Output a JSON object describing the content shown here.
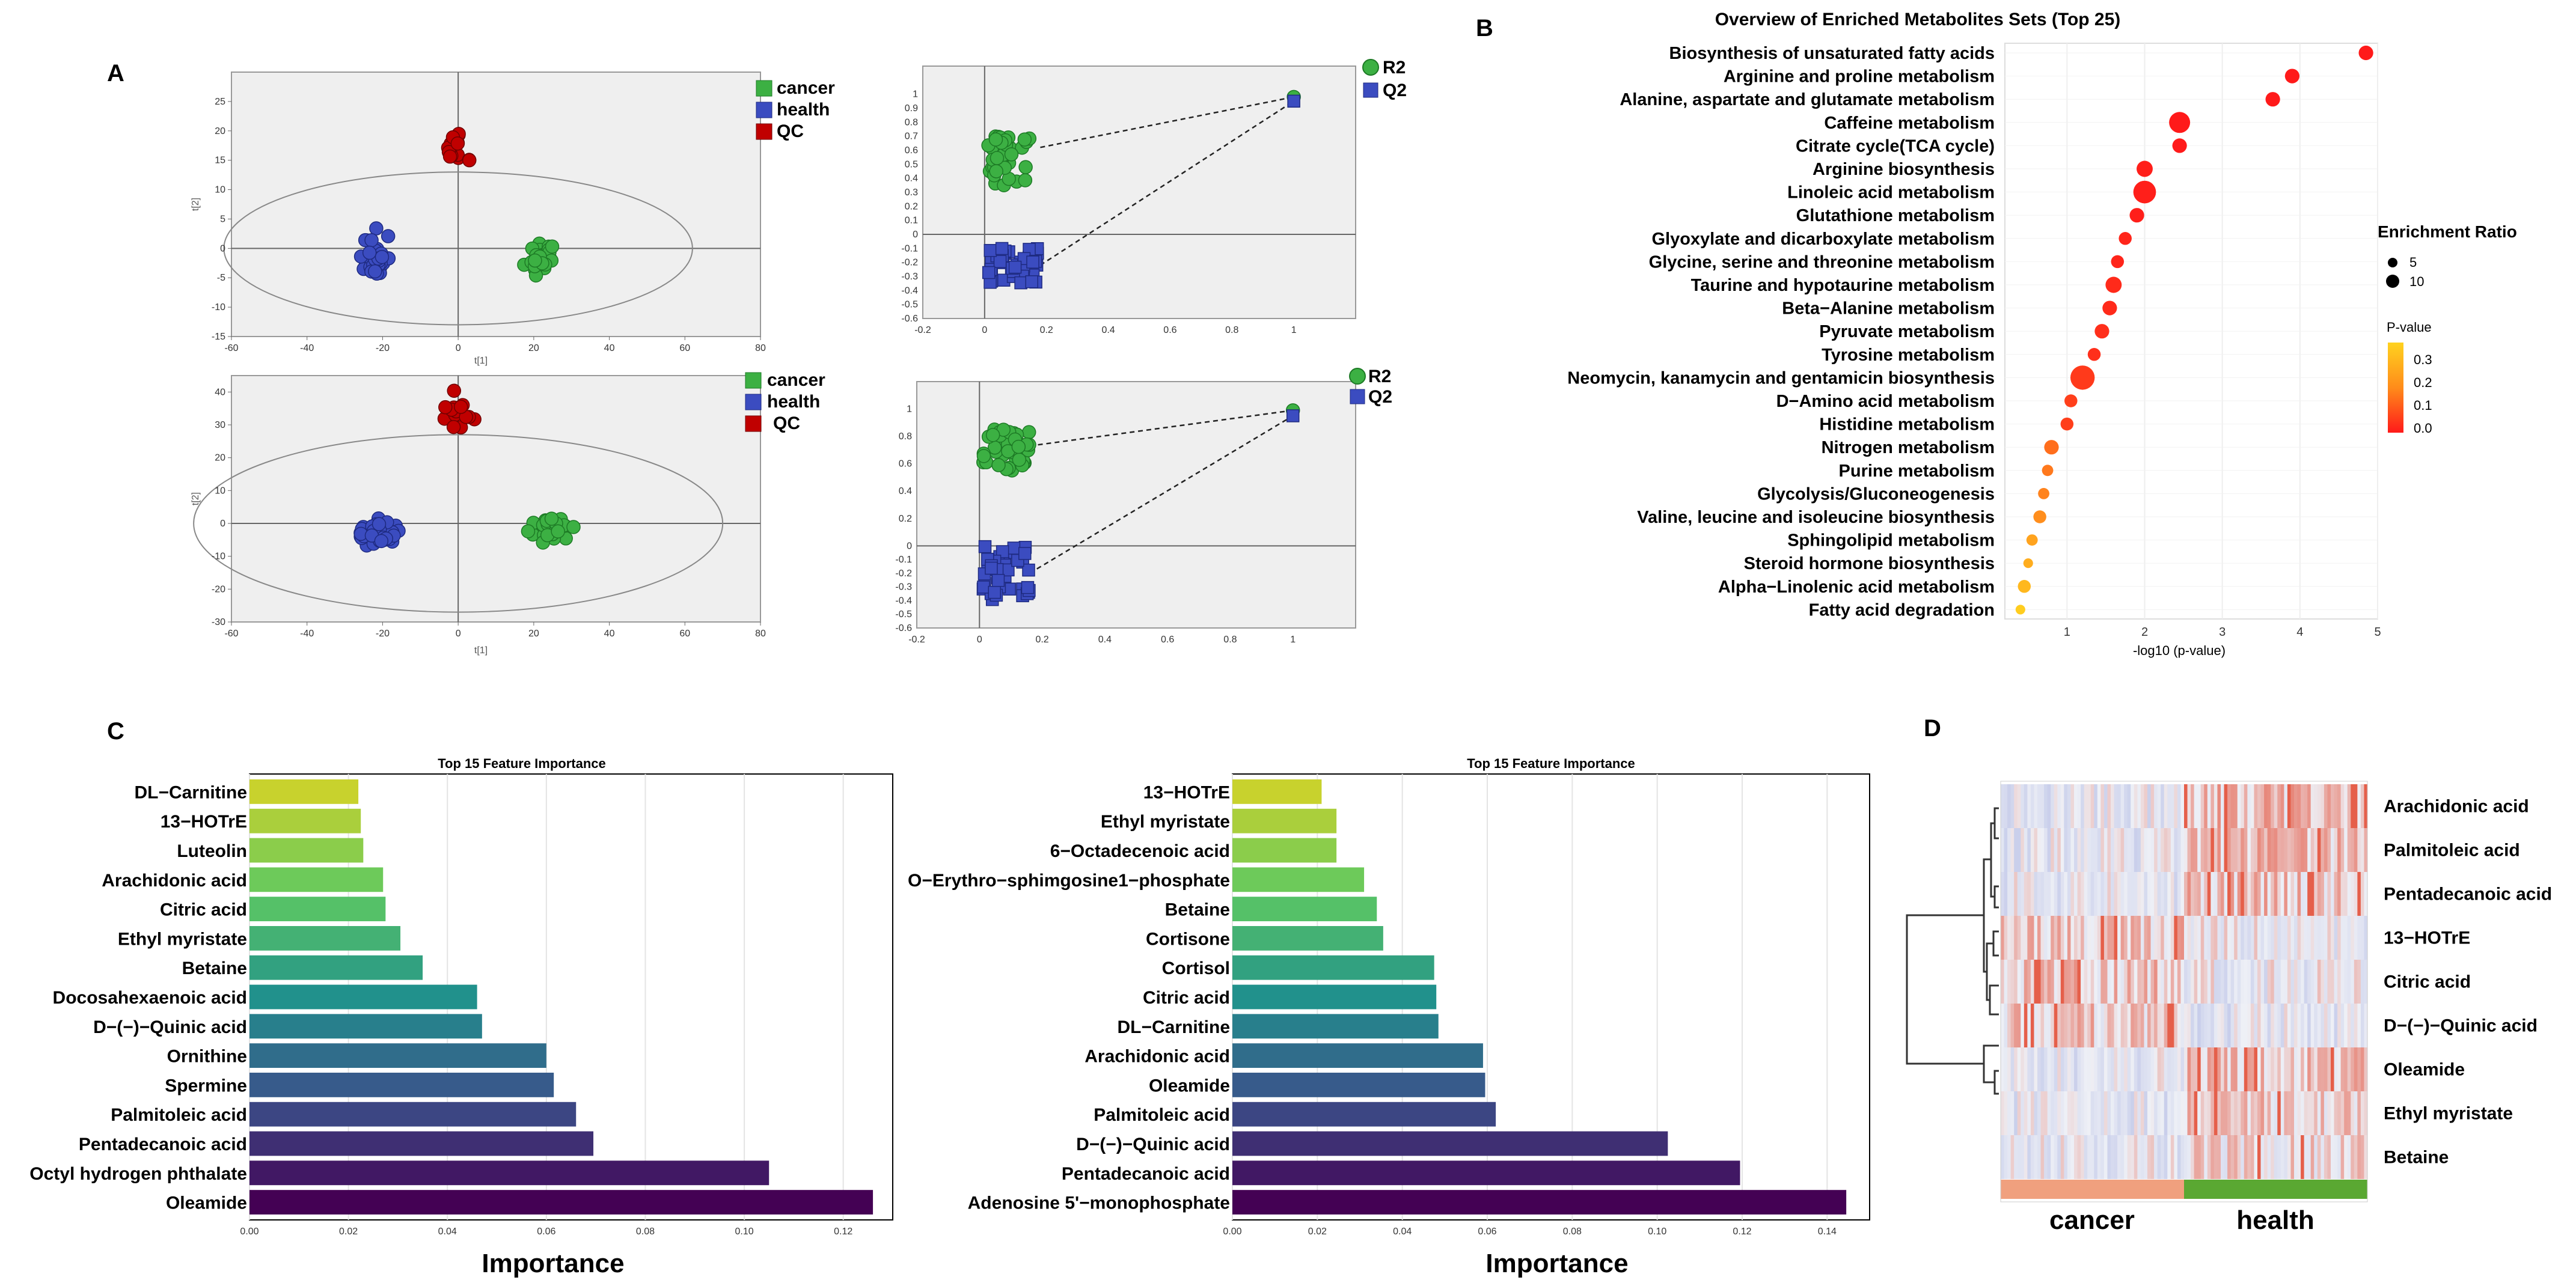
{
  "panel_labels": {
    "A": "A",
    "B": "B",
    "C": "C",
    "D": "D"
  },
  "colors": {
    "cancer": "#3cb043",
    "health": "#3b4cc0",
    "qc": "#c00000",
    "r2": "#3cb043",
    "q2": "#3b4cc0",
    "plot_bg": "#efefef",
    "heat_neutral": "#eef0f6",
    "heat_pos": "#e3452c",
    "heat_neg": "#8a96d8"
  },
  "chart_data": [
    {
      "id": "A1",
      "type": "scatter",
      "title": "",
      "xlabel": "t[1]",
      "ylabel": "t[2]",
      "xlim": [
        -60,
        80
      ],
      "ylim": [
        -15,
        30
      ],
      "xticks": [
        -60,
        -40,
        -20,
        0,
        20,
        40,
        60,
        80
      ],
      "yticks": [
        -15,
        -10,
        -5,
        0,
        5,
        10,
        15,
        20,
        25
      ],
      "legend": [
        "cancer",
        "health",
        "QC"
      ],
      "ellipse": {
        "rx": 62,
        "ry": 13
      },
      "series": [
        {
          "name": "cancer",
          "center": [
            22,
            -1.5
          ],
          "spread": [
            3,
            3
          ],
          "n": 28
        },
        {
          "name": "health",
          "center": [
            -22,
            -1.5
          ],
          "spread": [
            2.5,
            3
          ],
          "n": 40
        },
        {
          "name": "QC",
          "center": [
            -1,
            16.5
          ],
          "spread": [
            3,
            2.5
          ],
          "n": 16
        }
      ]
    },
    {
      "id": "A2",
      "type": "scatter",
      "title": "",
      "xlabel": "",
      "ylabel": "",
      "xlim": [
        -0.2,
        1.2
      ],
      "ylim": [
        -0.6,
        1.2
      ],
      "xticks": [
        -0.2,
        0,
        0.2,
        0.4,
        0.6,
        0.8,
        1
      ],
      "yticks": [
        -0.6,
        -0.5,
        -0.4,
        -0.3,
        -0.2,
        -0.1,
        0,
        0.1,
        0.2,
        0.3,
        0.4,
        0.5,
        0.6,
        0.7,
        0.8,
        0.9,
        1
      ],
      "legend": [
        "R2",
        "Q2"
      ],
      "series": [
        {
          "name": "R2",
          "cluster_x": [
            0.01,
            0.17
          ],
          "cluster_y": [
            0.35,
            0.7
          ],
          "n": 40,
          "final": [
            1,
            0.98
          ]
        },
        {
          "name": "Q2",
          "cluster_x": [
            0.01,
            0.18
          ],
          "cluster_y": [
            -0.35,
            -0.1
          ],
          "n": 40,
          "final": [
            1,
            0.95
          ]
        }
      ],
      "regression": {
        "R2": [
          [
            0.18,
            0.62
          ],
          [
            1,
            0.98
          ]
        ],
        "Q2": [
          [
            0.18,
            -0.22
          ],
          [
            1,
            0.95
          ]
        ]
      }
    },
    {
      "id": "A3",
      "type": "scatter",
      "title": "",
      "xlabel": "t[1]",
      "ylabel": "t[2]",
      "xlim": [
        -60,
        80
      ],
      "ylim": [
        -30,
        45
      ],
      "xticks": [
        -60,
        -40,
        -20,
        0,
        20,
        40,
        60,
        80
      ],
      "yticks": [
        -30,
        -20,
        -10,
        0,
        10,
        20,
        30,
        40
      ],
      "legend": [
        "cancer",
        "health",
        "QC"
      ],
      "ellipse": {
        "rx": 70,
        "ry": 27
      },
      "series": [
        {
          "name": "cancer",
          "center": [
            25,
            -2
          ],
          "spread": [
            4,
            2.5
          ],
          "n": 30
        },
        {
          "name": "health",
          "center": [
            -22,
            -3
          ],
          "spread": [
            5,
            3
          ],
          "n": 40
        },
        {
          "name": "QC",
          "center": [
            -1,
            33
          ],
          "spread": [
            3.5,
            4
          ],
          "n": 16
        }
      ]
    },
    {
      "id": "A4",
      "type": "scatter",
      "title": "",
      "xlabel": "",
      "ylabel": "",
      "xlim": [
        -0.2,
        1.2
      ],
      "ylim": [
        -0.6,
        1.2
      ],
      "xticks": [
        -0.2,
        0,
        0.2,
        0.4,
        0.6,
        0.8,
        1
      ],
      "yticks": [
        -0.6,
        -0.5,
        -0.4,
        -0.3,
        -0.2,
        -0.1,
        0,
        0.2,
        0.4,
        0.6,
        0.8,
        1
      ],
      "legend": [
        "R2",
        "Q2"
      ],
      "series": [
        {
          "name": "R2",
          "cluster_x": [
            0.01,
            0.16
          ],
          "cluster_y": [
            0.55,
            0.85
          ],
          "n": 40,
          "final": [
            1,
            0.99
          ]
        },
        {
          "name": "Q2",
          "cluster_x": [
            0.01,
            0.16
          ],
          "cluster_y": [
            -0.4,
            0.0
          ],
          "n": 40,
          "final": [
            1,
            0.95
          ]
        }
      ],
      "regression": {
        "R2": [
          [
            0.16,
            0.73
          ],
          [
            1,
            0.99
          ]
        ],
        "Q2": [
          [
            0.16,
            -0.2
          ],
          [
            1,
            0.95
          ]
        ]
      }
    },
    {
      "id": "B",
      "type": "scatter",
      "title": "Overview of Enriched Metabolites Sets (Top 25)",
      "xlabel": "-log10 (p-value)",
      "ylabel": "",
      "xlim": [
        0.2,
        5.0
      ],
      "xticks": [
        1,
        2,
        3,
        4,
        5
      ],
      "size_legend_title": "Enrichment Ratio",
      "size_legend": [
        5,
        10
      ],
      "color_legend_title": "P-value",
      "color_legend": [
        "0.3",
        "0.2",
        "0.1",
        "0.0"
      ],
      "categories": [
        "Biosynthesis of unsaturated fatty acids",
        "Arginine and proline metabolism",
        "Alanine, aspartate and glutamate metabolism",
        "Caffeine metabolism",
        "Citrate cycle(TCA cycle)",
        "Arginine biosynthesis",
        "Linoleic acid metabolism",
        "Glutathione metabolism",
        "Glyoxylate  and dicarboxylate metabolism",
        "Glycine, serine and threonine metabolism",
        "Taurine and hypotaurine metabolism",
        "Beta−Alanine metabolism",
        "Pyruvate metabolism",
        "Tyrosine metabolism",
        "Neomycin, kanamycin and gentamicin biosynthesis",
        "D−Amino acid metabolism",
        "Histidine metabolism",
        "Nitrogen metabolism",
        "Purine metabolism",
        "Glycolysis/Gluconeogenesis",
        "Valine, leucine and isoleucine biosynthesis",
        "Sphingolipid metabolism",
        "Steroid hormone biosynthesis",
        "Alpha−Linolenic acid metabolism",
        "Fatty acid degradation"
      ],
      "x": [
        4.85,
        3.9,
        3.65,
        2.45,
        2.45,
        2.0,
        2.0,
        1.9,
        1.75,
        1.65,
        1.6,
        1.55,
        1.45,
        1.35,
        1.2,
        1.05,
        1.0,
        0.8,
        0.75,
        0.7,
        0.65,
        0.55,
        0.5,
        0.45,
        0.4
      ],
      "enrichment_ratio": [
        6,
        6,
        6,
        10,
        6,
        7,
        11,
        6,
        5,
        5,
        7,
        6,
        6,
        5,
        12,
        5,
        5,
        6,
        4,
        4,
        5,
        4,
        3,
        5,
        3
      ],
      "p_value": [
        0.0,
        0.0,
        0.0,
        0.0,
        0.0,
        0.01,
        0.01,
        0.01,
        0.02,
        0.02,
        0.03,
        0.03,
        0.04,
        0.04,
        0.06,
        0.07,
        0.07,
        0.16,
        0.18,
        0.2,
        0.22,
        0.26,
        0.28,
        0.3,
        0.34
      ]
    },
    {
      "id": "C1",
      "type": "bar",
      "orientation": "horizontal",
      "title": "Top 15 Feature Importance",
      "xlabel": "Importance",
      "ylabel": "",
      "xlim": [
        0,
        0.13
      ],
      "xticks": [
        "0.00",
        "0.02",
        "0.04",
        "0.06",
        "0.08",
        "0.10",
        "0.12"
      ],
      "categories": [
        "DL−Carnitine",
        "13−HOTrE",
        "Luteolin",
        "Arachidonic acid",
        "Citric acid",
        "Ethyl myristate",
        "Betaine",
        "Docosahexaenoic acid",
        "D−(−)−Quinic acid",
        "Ornithine",
        "Spermine",
        "Palmitoleic acid",
        "Pentadecanoic acid",
        "Octyl hydrogen phthalate",
        "Oleamide"
      ],
      "values": [
        0.022,
        0.0225,
        0.023,
        0.027,
        0.0275,
        0.0305,
        0.035,
        0.046,
        0.047,
        0.06,
        0.0615,
        0.066,
        0.0695,
        0.105,
        0.126
      ]
    },
    {
      "id": "C2",
      "type": "bar",
      "orientation": "horizontal",
      "title": "Top 15 Feature Importance",
      "xlabel": "Importance",
      "ylabel": "",
      "xlim": [
        0,
        0.15
      ],
      "xticks": [
        "0.00",
        "0.02",
        "0.04",
        "0.06",
        "0.08",
        "0.10",
        "0.12",
        "0.14"
      ],
      "categories": [
        "13−HOTrE",
        "Ethyl myristate",
        "6−Octadecenoic acid",
        "O−Erythro−sphimgosine1−phosphate",
        "Betaine",
        "Cortisone",
        "Cortisol",
        "Citric acid",
        "DL−Carnitine",
        "Arachidonic acid",
        "Oleamide",
        "Palmitoleic acid",
        "D−(−)−Quinic acid",
        "Pentadecanoic acid",
        "Adenosine 5'−monophosphate"
      ],
      "values": [
        0.021,
        0.0245,
        0.0245,
        0.031,
        0.034,
        0.0355,
        0.0475,
        0.048,
        0.0485,
        0.059,
        0.0595,
        0.062,
        0.1025,
        0.1195,
        0.1445
      ]
    },
    {
      "id": "D",
      "type": "heatmap",
      "rows": [
        "Arachidonic acid",
        "Palmitoleic acid",
        "Pentadecanoic acid",
        "13−HOTrE",
        "Citric acid",
        "D−(−)−Quinic acid",
        "Oleamide",
        "Ethyl myristate",
        "Betaine"
      ],
      "groups": [
        "cancer",
        "health"
      ],
      "row_trend_cancer": [
        -0.3,
        -0.3,
        -0.3,
        0.4,
        0.4,
        0.35,
        -0.25,
        -0.3,
        -0.2
      ],
      "row_trend_health": [
        0.5,
        0.5,
        0.45,
        -0.15,
        -0.15,
        -0.35,
        0.45,
        0.35,
        0.2
      ]
    }
  ]
}
